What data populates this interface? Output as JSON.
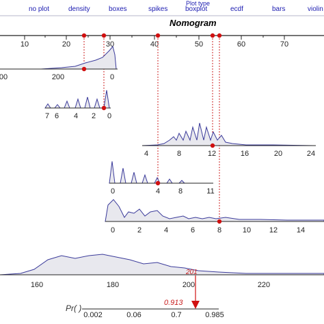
{
  "menu": {
    "items": [
      "no plot",
      "density",
      "boxes",
      "spikes",
      "boxplot",
      "ecdf",
      "bars",
      "violin"
    ],
    "header": "Plot type",
    "selected": "density"
  },
  "title": "Nomogram",
  "points_axis": {
    "ticks": [
      "10",
      "20",
      "30",
      "40",
      "50",
      "60",
      "70"
    ]
  },
  "rows": [
    {
      "id": "row1",
      "ticks": [
        "00",
        "200",
        "0"
      ]
    },
    {
      "id": "row2",
      "ticks": [
        "7",
        "6",
        "4",
        "2",
        "0"
      ]
    },
    {
      "id": "row3",
      "ticks": [
        "4",
        "8",
        "12",
        "16",
        "20",
        "24"
      ]
    },
    {
      "id": "row4",
      "ticks": [
        "0",
        "4",
        "8",
        "11"
      ]
    },
    {
      "id": "row5",
      "ticks": [
        "0",
        "2",
        "4",
        "6",
        "8",
        "10",
        "12",
        "14"
      ]
    }
  ],
  "total_axis": {
    "ticks": [
      "160",
      "180",
      "200",
      "220"
    ]
  },
  "total_selected": "201",
  "prob_axis": {
    "label": "Pr( )",
    "ticks": [
      "0.002",
      "0.06",
      "0.7",
      "0.985"
    ]
  },
  "prediction": "0.913",
  "colors": {
    "menu": "#1a1ab0",
    "marker": "#d01010",
    "curve": "#3a3a9a",
    "fill": "#e8e8ee"
  }
}
